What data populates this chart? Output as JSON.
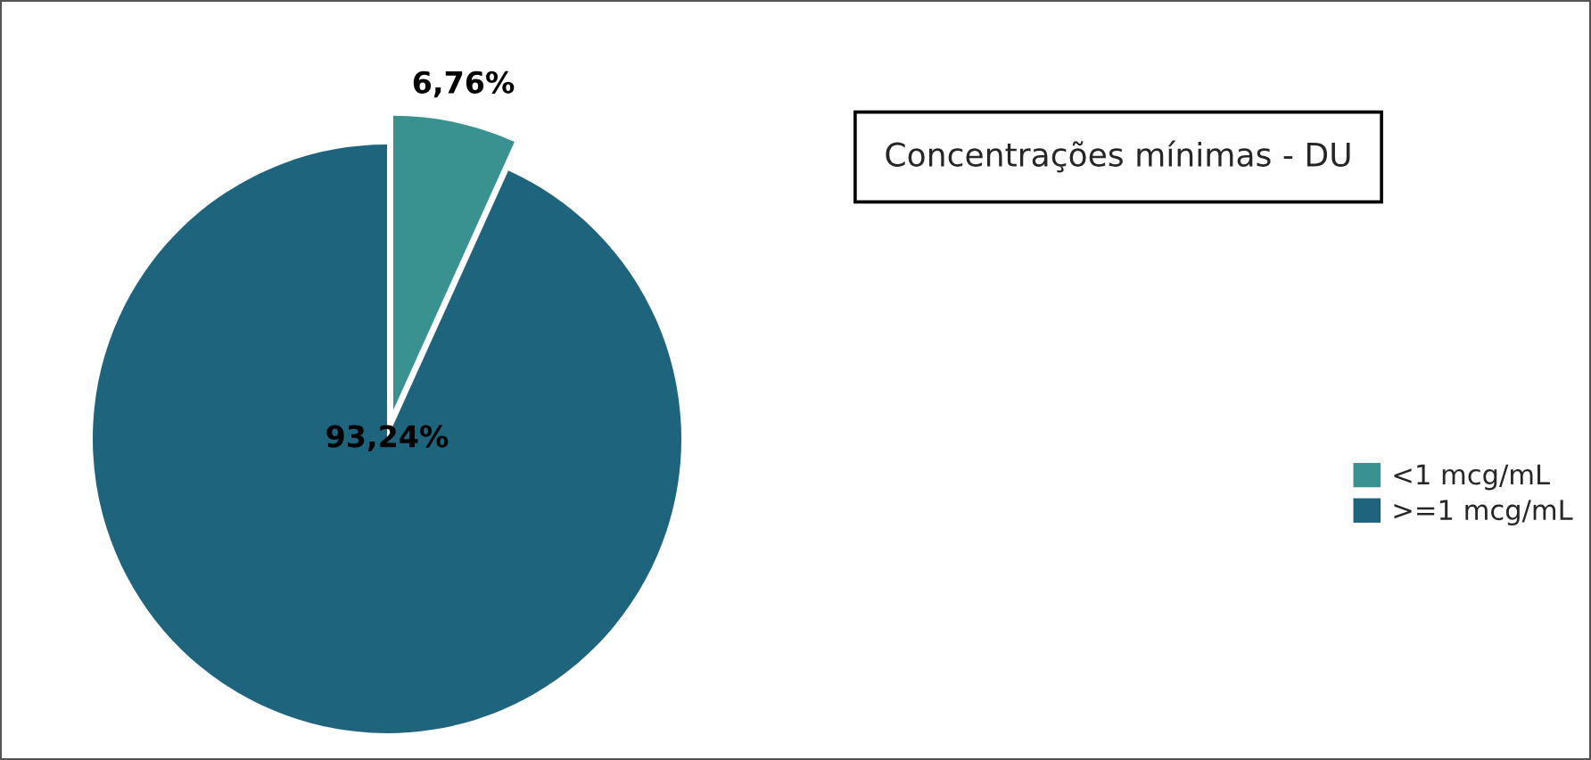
{
  "chart_data": {
    "type": "pie",
    "title": "Concentrações mínimas - DU",
    "categories": [
      "<1 mcg/mL",
      ">=1 mcg/mL"
    ],
    "values": [
      6.76,
      93.24
    ],
    "colors": [
      "#3a9290",
      "#1e647c"
    ],
    "value_labels": [
      "6,76%",
      "93,24%"
    ],
    "legend": "right"
  }
}
